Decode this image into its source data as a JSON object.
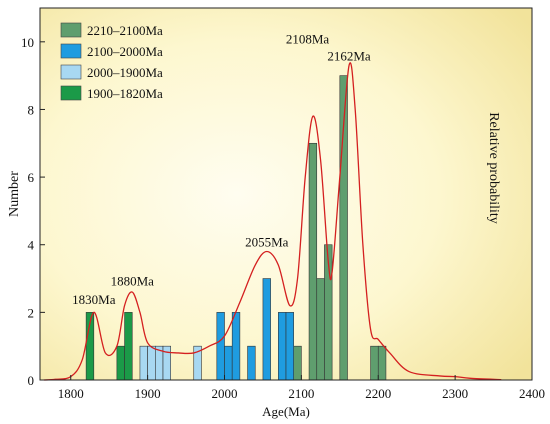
{
  "chart_data": {
    "type": "bar",
    "title": "",
    "xlabel": "Age(Ma)",
    "ylabel": "Number",
    "y2label": "Relative probability",
    "xlim": [
      1760,
      2400
    ],
    "ylim": [
      0,
      11
    ],
    "xticks": [
      1800,
      1900,
      2000,
      2100,
      2200,
      2300,
      2400
    ],
    "yticks": [
      0,
      2,
      4,
      6,
      8,
      10
    ],
    "bin_width": 10,
    "legend_position": "top-left",
    "series": [
      {
        "name": "2210–2100Ma",
        "color": "#5f9e6e",
        "bins": [
          [
            2090,
            1
          ],
          [
            2110,
            7
          ],
          [
            2120,
            3
          ],
          [
            2130,
            4
          ],
          [
            2150,
            9
          ],
          [
            2190,
            1
          ],
          [
            2200,
            1
          ]
        ]
      },
      {
        "name": "2100–2000Ma",
        "color": "#1f9ce0",
        "bins": [
          [
            1990,
            2
          ],
          [
            2000,
            1
          ],
          [
            2010,
            2
          ],
          [
            2030,
            1
          ],
          [
            2050,
            3
          ],
          [
            2070,
            2
          ],
          [
            2080,
            2
          ]
        ]
      },
      {
        "name": "2000–1900Ma",
        "color": "#a8d8f2",
        "bins": [
          [
            1890,
            1
          ],
          [
            1900,
            1
          ],
          [
            1910,
            1
          ],
          [
            1920,
            1
          ],
          [
            1960,
            1
          ]
        ]
      },
      {
        "name": "1900–1820Ma",
        "color": "#1b9a48",
        "bins": [
          [
            1820,
            2
          ],
          [
            1860,
            1
          ],
          [
            1870,
            2
          ]
        ]
      }
    ],
    "probability_curve": {
      "color": "#d42020",
      "points": [
        [
          1765,
          0.0
        ],
        [
          1780,
          0.02
        ],
        [
          1800,
          0.1
        ],
        [
          1815,
          0.6
        ],
        [
          1830,
          2.0
        ],
        [
          1845,
          0.8
        ],
        [
          1860,
          1.0
        ],
        [
          1870,
          2.2
        ],
        [
          1880,
          2.6
        ],
        [
          1890,
          2.0
        ],
        [
          1900,
          1.1
        ],
        [
          1920,
          0.85
        ],
        [
          1940,
          0.8
        ],
        [
          1960,
          0.8
        ],
        [
          1980,
          1.0
        ],
        [
          2000,
          1.3
        ],
        [
          2020,
          2.3
        ],
        [
          2040,
          3.4
        ],
        [
          2055,
          3.8
        ],
        [
          2070,
          3.4
        ],
        [
          2085,
          2.2
        ],
        [
          2095,
          3.0
        ],
        [
          2105,
          6.0
        ],
        [
          2115,
          7.8
        ],
        [
          2125,
          6.5
        ],
        [
          2135,
          3.5
        ],
        [
          2140,
          3.2
        ],
        [
          2150,
          6.0
        ],
        [
          2162,
          9.3
        ],
        [
          2170,
          8.0
        ],
        [
          2180,
          4.0
        ],
        [
          2190,
          1.5
        ],
        [
          2200,
          1.2
        ],
        [
          2215,
          0.8
        ],
        [
          2240,
          0.25
        ],
        [
          2280,
          0.12
        ],
        [
          2300,
          0.1
        ],
        [
          2320,
          0.05
        ],
        [
          2360,
          0.01
        ]
      ]
    },
    "annotations": [
      {
        "label": "1830Ma",
        "x": 1830,
        "y": 2.25
      },
      {
        "label": "1880Ma",
        "x": 1880,
        "y": 2.8
      },
      {
        "label": "2055Ma",
        "x": 2055,
        "y": 3.95
      },
      {
        "label": "2108Ma",
        "x": 2108,
        "y": 9.95
      },
      {
        "label": "2162Ma",
        "x": 2162,
        "y": 9.45
      }
    ]
  }
}
